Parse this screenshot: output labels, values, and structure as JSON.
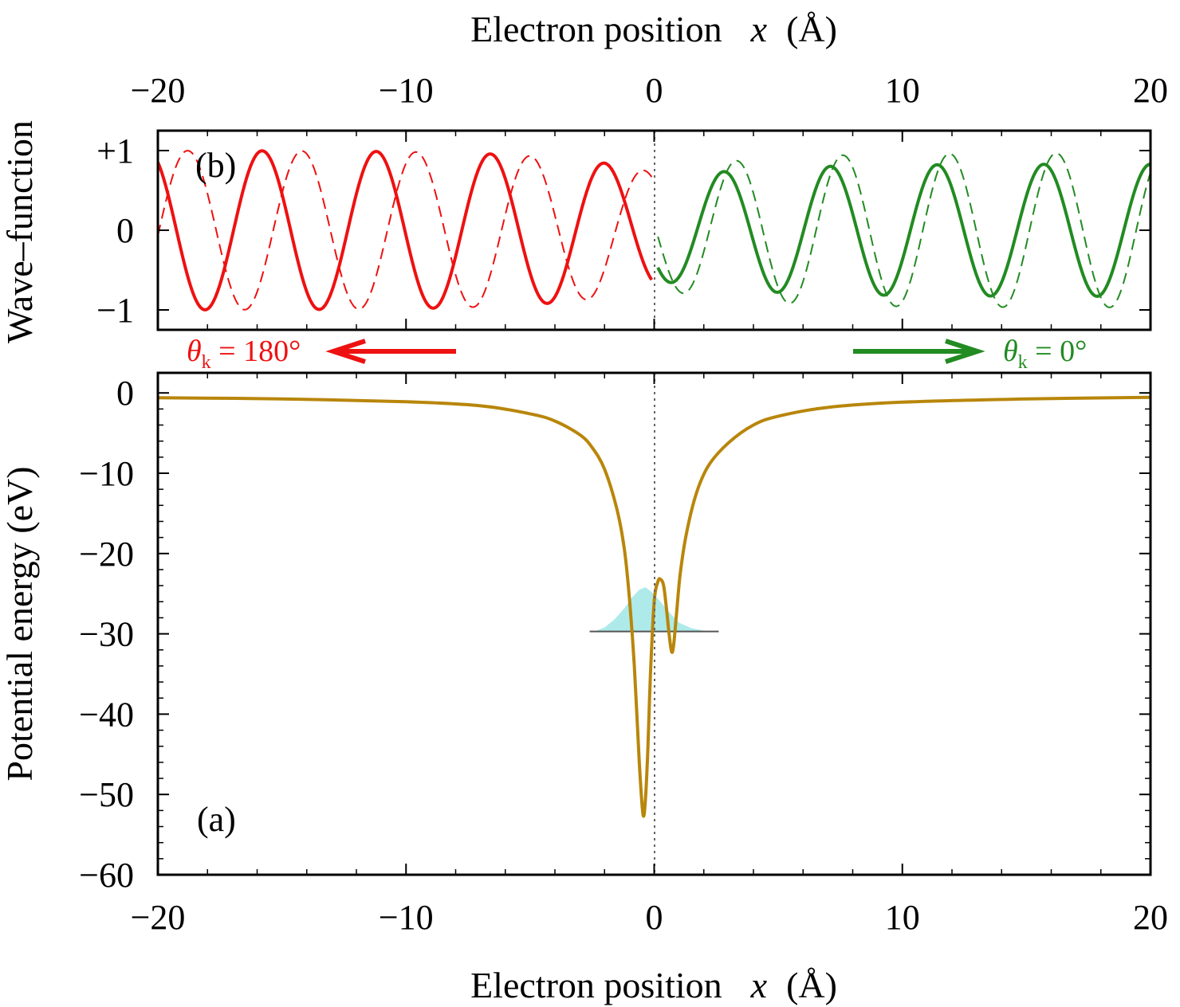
{
  "colors": {
    "left_wave": "#ee1111",
    "right_wave": "#228b22",
    "potential": "#b8860b",
    "density_fill": "#aeeaea",
    "axis": "#000000"
  },
  "text": {
    "top_xlabel": "Electron position",
    "bottom_xlabel": "Electron position",
    "xvar": "x",
    "xunit": "(Å)",
    "wave_ylabel": "Wave–function",
    "pot_ylabel": "Potential energy  (eV)",
    "panel_b": "(b)",
    "panel_a": "(a)",
    "theta_symbol": "θ",
    "theta_sub": "k",
    "left_arrow_value": " = 180°",
    "right_arrow_value": " = 0°"
  },
  "chart_data": [
    {
      "id": "wave",
      "type": "line",
      "panel": "(b)",
      "xlabel": "Electron position x (Å)",
      "ylabel": "Wave–function",
      "xlim": [
        -20,
        20
      ],
      "ylim": [
        -1.25,
        1.25
      ],
      "xticks": [
        -20,
        -10,
        0,
        10,
        20
      ],
      "xtick_labels": [
        "−20",
        "−10",
        "0",
        "10",
        "20"
      ],
      "yticks": [
        1,
        0,
        -1
      ],
      "ytick_labels": [
        "+1",
        "0",
        "−1"
      ],
      "series": [
        {
          "style": "solid",
          "color": "#ee1111",
          "x_range": [
            -20,
            -0.1
          ],
          "wavelength": 4.6,
          "phase_ref_x": -15.8,
          "amplitude_edge": 1.0,
          "amplitude_center": 0.72,
          "envelope_width": 3.5,
          "x_peaks": [
            -15.8,
            -11.2,
            -6.6,
            -2.6
          ],
          "y_peaks": [
            1.0,
            0.98,
            0.95,
            0.85
          ],
          "x_troughs": [
            -18.1,
            -13.5,
            -8.9,
            -4.4,
            -0.8
          ],
          "y_troughs": [
            -0.99,
            -0.98,
            -0.96,
            -0.93,
            -0.73
          ]
        },
        {
          "style": "dashed",
          "color": "#ee1111",
          "x_range": [
            -20,
            -0.1
          ],
          "wavelength": 4.6,
          "phase_ref_x": -14.2,
          "amplitude_edge": 1.0,
          "amplitude_center": 0.72,
          "envelope_width": 3.5
        },
        {
          "style": "solid",
          "color": "#228b22",
          "x_range": [
            0.15,
            20
          ],
          "wavelength": 4.3,
          "phase_ref_x": 2.8,
          "amplitude_edge": 0.83,
          "amplitude_center": 0.62,
          "envelope_width": 3.5,
          "x_peaks": [
            2.8,
            7.0,
            11.4,
            16.0
          ],
          "y_peaks": [
            0.73,
            0.78,
            0.82,
            0.83
          ],
          "x_troughs": [
            1.2,
            4.7,
            9.0,
            13.6,
            18.0
          ],
          "y_troughs": [
            -0.63,
            -0.77,
            -0.82,
            -0.83,
            -0.83
          ]
        },
        {
          "style": "dashed",
          "color": "#228b22",
          "x_range": [
            0.15,
            20
          ],
          "wavelength": 4.3,
          "phase_ref_x": 3.3,
          "amplitude_edge": 0.97,
          "amplitude_center": 0.72,
          "envelope_width": 3.5
        }
      ],
      "vline_x": 0,
      "annotations": [
        {
          "text": "θk = 180°",
          "arrow": "left",
          "color": "#ee1111"
        },
        {
          "text": "θk = 0°",
          "arrow": "right",
          "color": "#228b22"
        }
      ]
    },
    {
      "id": "potential",
      "type": "line",
      "panel": "(a)",
      "xlabel": "Electron position x (Å)",
      "ylabel": "Potential energy (eV)",
      "xlim": [
        -20,
        20
      ],
      "ylim": [
        -60,
        2.5
      ],
      "xticks": [
        -20,
        -10,
        0,
        10,
        20
      ],
      "xtick_labels": [
        "−20",
        "−10",
        "0",
        "10",
        "20"
      ],
      "yticks": [
        0,
        -10,
        -20,
        -30,
        -40,
        -50,
        -60
      ],
      "ytick_labels": [
        "0",
        "−10",
        "−20",
        "−30",
        "−40",
        "−50",
        "−60"
      ],
      "series": [
        {
          "name": "potential",
          "color": "#b8860b",
          "x": [
            -20,
            -15,
            -10,
            -7,
            -5,
            -4,
            -3,
            -2.5,
            -2,
            -1.5,
            -1.2,
            -1.0,
            -0.8,
            -0.6,
            -0.45,
            -0.35,
            -0.25,
            -0.15,
            0.0,
            0.15,
            0.25,
            0.38,
            0.5,
            0.6,
            0.7,
            0.78,
            0.9,
            1.05,
            1.3,
            1.7,
            2.2,
            3,
            4,
            5,
            7,
            10,
            15,
            20
          ],
          "y": [
            -0.6,
            -0.75,
            -1.1,
            -1.6,
            -2.6,
            -3.5,
            -5.2,
            -6.8,
            -9.5,
            -14.5,
            -19.5,
            -25.5,
            -34,
            -46,
            -52.5,
            -50.5,
            -44,
            -35,
            -26,
            -23.5,
            -23.2,
            -24,
            -27,
            -30,
            -32.2,
            -31.5,
            -27.5,
            -22.5,
            -17.5,
            -12.5,
            -9.0,
            -6.2,
            -4.0,
            -2.9,
            -1.8,
            -1.15,
            -0.75,
            -0.55
          ]
        },
        {
          "name": "density",
          "type": "area",
          "color": "#aeeaea",
          "baseline": -29.7,
          "x": [
            -2.4,
            -2.0,
            -1.6,
            -1.2,
            -0.9,
            -0.6,
            -0.35,
            -0.1,
            0.2,
            0.6,
            1.0,
            1.5,
            2.0,
            2.4
          ],
          "y": [
            -29.7,
            -29.2,
            -28.2,
            -26.8,
            -25.5,
            -24.5,
            -24.2,
            -24.8,
            -25.8,
            -27.3,
            -28.6,
            -29.3,
            -29.6,
            -29.7
          ]
        }
      ],
      "hline": {
        "y": -29.7,
        "x_range": [
          -2.6,
          2.6
        ]
      },
      "vline_x": 0
    }
  ]
}
